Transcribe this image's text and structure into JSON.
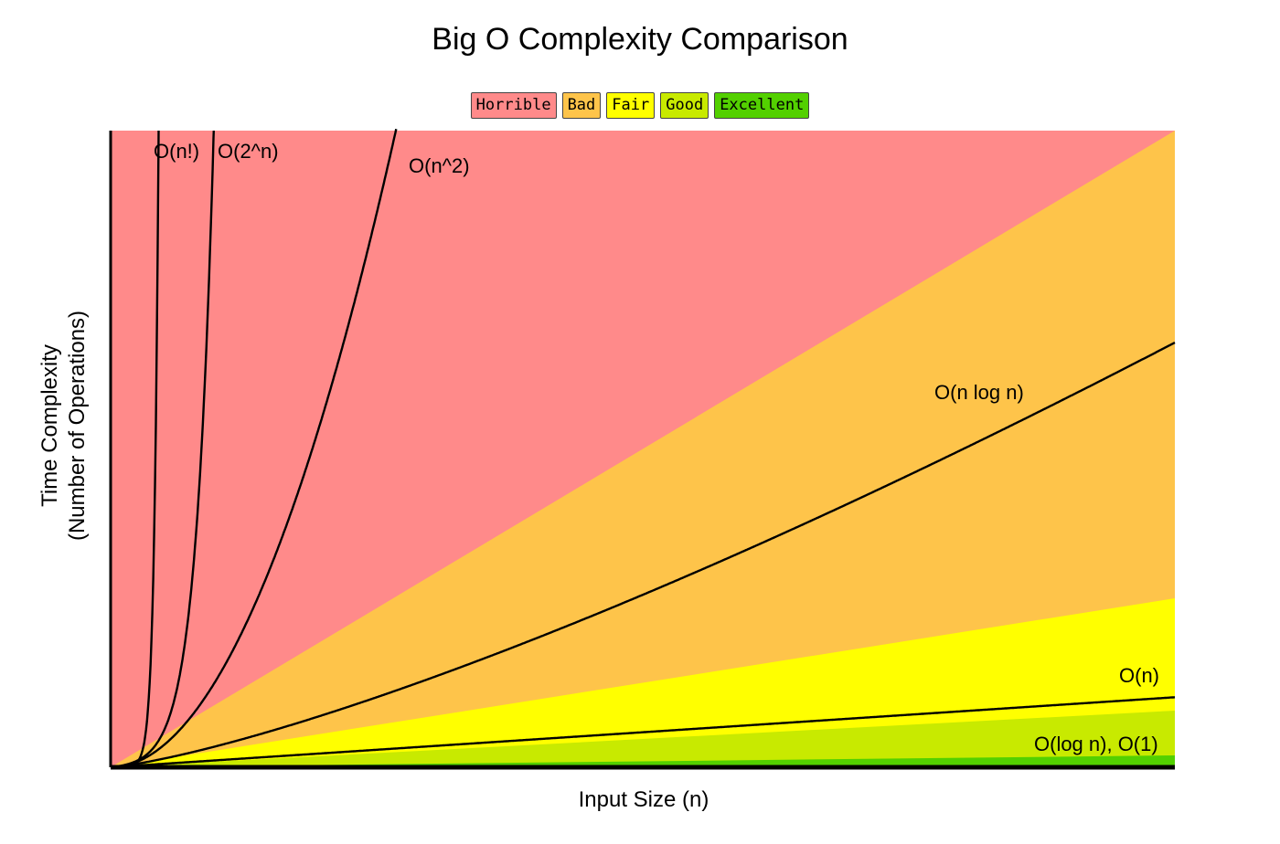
{
  "chart_data": {
    "type": "line",
    "title": "Big O Complexity Comparison",
    "xlabel": "Input Size (n)",
    "ylabel": [
      "Time Complexity",
      "(Number of Operations)"
    ],
    "grid": false,
    "legend_position": "top-center",
    "legend": [
      {
        "name": "Horrible",
        "color": "#ff8a8a"
      },
      {
        "name": "Bad",
        "color": "#fec44a"
      },
      {
        "name": "Fair",
        "color": "#ffff00"
      },
      {
        "name": "Good",
        "color": "#c8ea00"
      },
      {
        "name": "Excellent",
        "color": "#53d000"
      }
    ],
    "regions": [
      {
        "name": "Horrible",
        "color": "#ff8a8a"
      },
      {
        "name": "Bad",
        "color": "#fec44a"
      },
      {
        "name": "Fair",
        "color": "#ffff00"
      },
      {
        "name": "Good",
        "color": "#c8ea00"
      },
      {
        "name": "Excellent",
        "color": "#53d000"
      }
    ],
    "series": [
      {
        "name": "O(n!)",
        "label": "O(n!)"
      },
      {
        "name": "O(2^n)",
        "label": "O(2^n)"
      },
      {
        "name": "O(n^2)",
        "label": "O(n^2)"
      },
      {
        "name": "O(n log n)",
        "label": "O(n log n)"
      },
      {
        "name": "O(n)",
        "label": "O(n)"
      },
      {
        "name": "O(log n), O(1)",
        "label": "O(log n), O(1)"
      }
    ]
  }
}
